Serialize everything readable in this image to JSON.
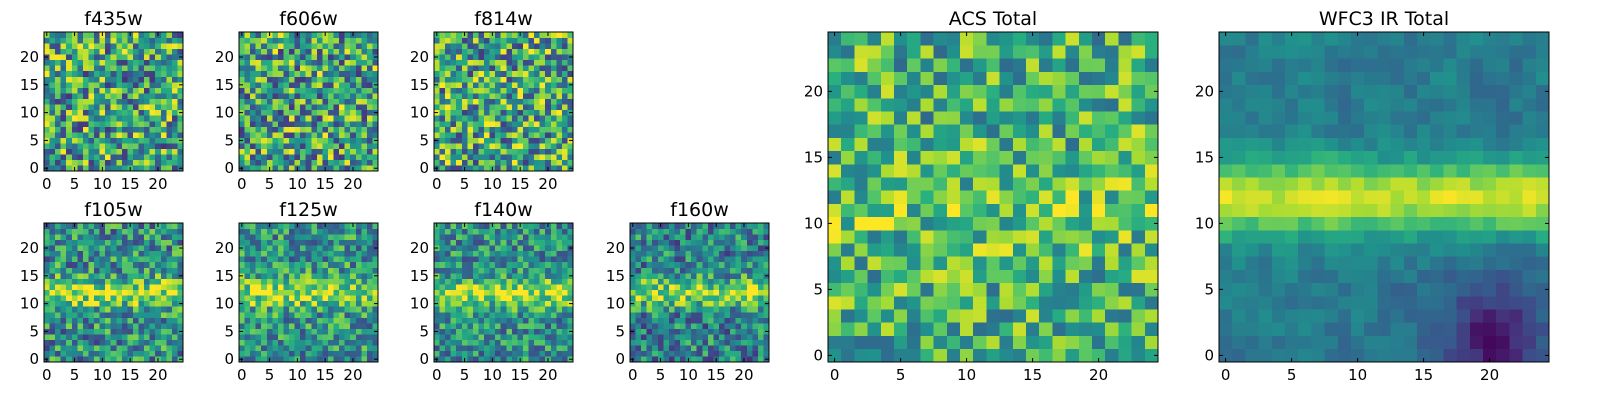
{
  "chart_data": [
    {
      "type": "heatmap",
      "panel": "f435w",
      "title": "f435w",
      "grid_size": 25,
      "xlim": [
        -0.5,
        24.5
      ],
      "ylim": [
        -0.5,
        24.5
      ],
      "xticks": [
        0,
        5,
        10,
        15,
        20
      ],
      "yticks": [
        0,
        5,
        10,
        15,
        20
      ],
      "colormap": "viridis",
      "structure": "noise",
      "seed": 11,
      "noise_amplitude": 0.42,
      "baseline": 0.58,
      "features": []
    },
    {
      "type": "heatmap",
      "panel": "f606w",
      "title": "f606w",
      "grid_size": 25,
      "xlim": [
        -0.5,
        24.5
      ],
      "ylim": [
        -0.5,
        24.5
      ],
      "xticks": [
        0,
        5,
        10,
        15,
        20
      ],
      "yticks": [
        0,
        5,
        10,
        15,
        20
      ],
      "colormap": "viridis",
      "structure": "noise",
      "seed": 23,
      "noise_amplitude": 0.42,
      "baseline": 0.58,
      "features": []
    },
    {
      "type": "heatmap",
      "panel": "f814w",
      "title": "f814w",
      "grid_size": 25,
      "xlim": [
        -0.5,
        24.5
      ],
      "ylim": [
        -0.5,
        24.5
      ],
      "xticks": [
        0,
        5,
        10,
        15,
        20
      ],
      "yticks": [
        0,
        5,
        10,
        15,
        20
      ],
      "colormap": "viridis",
      "structure": "noise",
      "seed": 37,
      "noise_amplitude": 0.42,
      "baseline": 0.6,
      "features": []
    },
    {
      "type": "heatmap",
      "panel": "f105w",
      "title": "f105w",
      "grid_size": 25,
      "xlim": [
        -0.5,
        24.5
      ],
      "ylim": [
        -0.5,
        24.5
      ],
      "xticks": [
        0,
        5,
        10,
        15,
        20
      ],
      "yticks": [
        0,
        5,
        10,
        15,
        20
      ],
      "colormap": "viridis",
      "structure": "band",
      "seed": 41,
      "noise_amplitude": 0.32,
      "baseline": 0.5,
      "features": [
        {
          "kind": "horizontal_band",
          "center_y": 12,
          "width": 2.5,
          "strength": 0.38
        }
      ]
    },
    {
      "type": "heatmap",
      "panel": "f125w",
      "title": "f125w",
      "grid_size": 25,
      "xlim": [
        -0.5,
        24.5
      ],
      "ylim": [
        -0.5,
        24.5
      ],
      "xticks": [
        0,
        5,
        10,
        15,
        20
      ],
      "yticks": [
        0,
        5,
        10,
        15,
        20
      ],
      "colormap": "viridis",
      "structure": "band",
      "seed": 53,
      "noise_amplitude": 0.3,
      "baseline": 0.52,
      "features": [
        {
          "kind": "horizontal_band",
          "center_y": 12,
          "width": 2.5,
          "strength": 0.35
        }
      ]
    },
    {
      "type": "heatmap",
      "panel": "f140w",
      "title": "f140w",
      "grid_size": 25,
      "xlim": [
        -0.5,
        24.5
      ],
      "ylim": [
        -0.5,
        24.5
      ],
      "xticks": [
        0,
        5,
        10,
        15,
        20
      ],
      "yticks": [
        0,
        5,
        10,
        15,
        20
      ],
      "colormap": "viridis",
      "structure": "band",
      "seed": 67,
      "noise_amplitude": 0.28,
      "baseline": 0.5,
      "features": [
        {
          "kind": "horizontal_band",
          "center_y": 12,
          "width": 2.5,
          "strength": 0.4
        }
      ]
    },
    {
      "type": "heatmap",
      "panel": "f160w",
      "title": "f160w",
      "grid_size": 25,
      "xlim": [
        -0.5,
        24.5
      ],
      "ylim": [
        -0.5,
        24.5
      ],
      "xticks": [
        0,
        5,
        10,
        15,
        20
      ],
      "yticks": [
        0,
        5,
        10,
        15,
        20
      ],
      "colormap": "viridis",
      "structure": "band",
      "seed": 79,
      "noise_amplitude": 0.3,
      "baseline": 0.45,
      "features": [
        {
          "kind": "horizontal_band",
          "center_y": 12,
          "width": 2.5,
          "strength": 0.42
        }
      ]
    },
    {
      "type": "heatmap",
      "panel": "ACS Total",
      "title": "ACS Total",
      "grid_size": 25,
      "xlim": [
        -0.5,
        24.5
      ],
      "ylim": [
        -0.5,
        24.5
      ],
      "xticks": [
        0,
        5,
        10,
        15,
        20
      ],
      "yticks": [
        0,
        5,
        10,
        15,
        20
      ],
      "colormap": "viridis",
      "structure": "noise",
      "seed": 97,
      "noise_amplitude": 0.3,
      "baseline": 0.65,
      "features": [
        {
          "kind": "horizontal_band",
          "center_y": 11,
          "width": 3,
          "strength": 0.08
        }
      ]
    },
    {
      "type": "heatmap",
      "panel": "WFC3 IR Total",
      "title": "WFC3 IR Total",
      "grid_size": 25,
      "xlim": [
        -0.5,
        24.5
      ],
      "ylim": [
        -0.5,
        24.5
      ],
      "xticks": [
        0,
        5,
        10,
        15,
        20
      ],
      "yticks": [
        0,
        5,
        10,
        15,
        20
      ],
      "colormap": "viridis",
      "structure": "smooth_band",
      "seed": 131,
      "noise_amplitude": 0.14,
      "baseline": 0.42,
      "features": [
        {
          "kind": "horizontal_band",
          "center_y": 12,
          "width": 2.8,
          "strength": 0.5
        },
        {
          "kind": "dark_corner",
          "center_x": 20,
          "center_y": 1,
          "radius": 5,
          "strength": -0.3
        }
      ]
    }
  ]
}
